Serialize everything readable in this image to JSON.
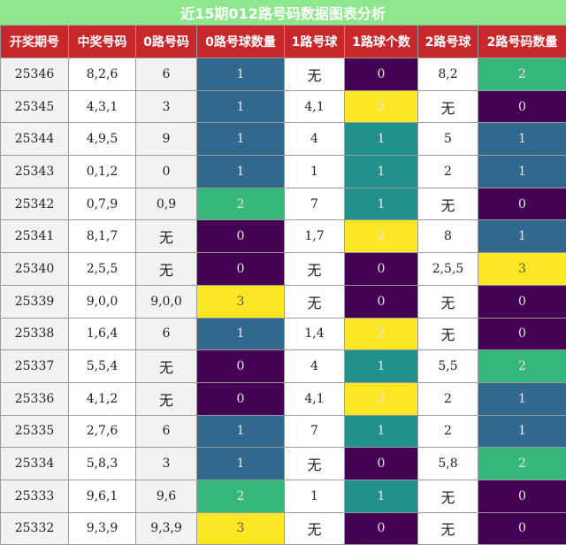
{
  "title": "近15期012路号码数据图表分析",
  "headers": [
    "开奖期号",
    "中奖号码",
    "0路号码",
    "0路号球数量",
    "1路号球",
    "1路球个数",
    "2路号球",
    "2路号码数量"
  ],
  "heat_colors": {
    "0": "#440154",
    "1": "#31688e",
    "2": "#35b779",
    "3": "#fde725"
  },
  "heat_colors_1": {
    "0": "#440154",
    "1": "#21918c",
    "2": "#fde725",
    "3": "#fde725"
  },
  "rows": [
    {
      "issue": "25346",
      "nums": "8,2,6",
      "r0": "6",
      "c0": "1",
      "r1": "无",
      "c1": "0",
      "r2": "8,2",
      "c2": "2"
    },
    {
      "issue": "25345",
      "nums": "4,3,1",
      "r0": "3",
      "c0": "1",
      "r1": "4,1",
      "c1": "2",
      "r2": "无",
      "c2": "0"
    },
    {
      "issue": "25344",
      "nums": "4,9,5",
      "r0": "9",
      "c0": "1",
      "r1": "4",
      "c1": "1",
      "r2": "5",
      "c2": "1"
    },
    {
      "issue": "25343",
      "nums": "0,1,2",
      "r0": "0",
      "c0": "1",
      "r1": "1",
      "c1": "1",
      "r2": "2",
      "c2": "1"
    },
    {
      "issue": "25342",
      "nums": "0,7,9",
      "r0": "0,9",
      "c0": "2",
      "r1": "7",
      "c1": "1",
      "r2": "无",
      "c2": "0"
    },
    {
      "issue": "25341",
      "nums": "8,1,7",
      "r0": "无",
      "c0": "0",
      "r1": "1,7",
      "c1": "2",
      "r2": "8",
      "c2": "1"
    },
    {
      "issue": "25340",
      "nums": "2,5,5",
      "r0": "无",
      "c0": "0",
      "r1": "无",
      "c1": "0",
      "r2": "2,5,5",
      "c2": "3"
    },
    {
      "issue": "25339",
      "nums": "9,0,0",
      "r0": "9,0,0",
      "c0": "3",
      "r1": "无",
      "c1": "0",
      "r2": "无",
      "c2": "0"
    },
    {
      "issue": "25338",
      "nums": "1,6,4",
      "r0": "6",
      "c0": "1",
      "r1": "1,4",
      "c1": "2",
      "r2": "无",
      "c2": "0"
    },
    {
      "issue": "25337",
      "nums": "5,5,4",
      "r0": "无",
      "c0": "0",
      "r1": "4",
      "c1": "1",
      "r2": "5,5",
      "c2": "2"
    },
    {
      "issue": "25336",
      "nums": "4,1,2",
      "r0": "无",
      "c0": "0",
      "r1": "4,1",
      "c1": "2",
      "r2": "2",
      "c2": "1"
    },
    {
      "issue": "25335",
      "nums": "2,7,6",
      "r0": "6",
      "c0": "1",
      "r1": "7",
      "c1": "1",
      "r2": "2",
      "c2": "1"
    },
    {
      "issue": "25334",
      "nums": "5,8,3",
      "r0": "3",
      "c0": "1",
      "r1": "无",
      "c1": "0",
      "r2": "5,8",
      "c2": "2"
    },
    {
      "issue": "25333",
      "nums": "9,6,1",
      "r0": "9,6",
      "c0": "2",
      "r1": "1",
      "c1": "1",
      "r2": "无",
      "c2": "0"
    },
    {
      "issue": "25332",
      "nums": "9,3,9",
      "r0": "9,3,9",
      "c0": "3",
      "r1": "无",
      "c1": "0",
      "r2": "无",
      "c2": "0"
    }
  ]
}
